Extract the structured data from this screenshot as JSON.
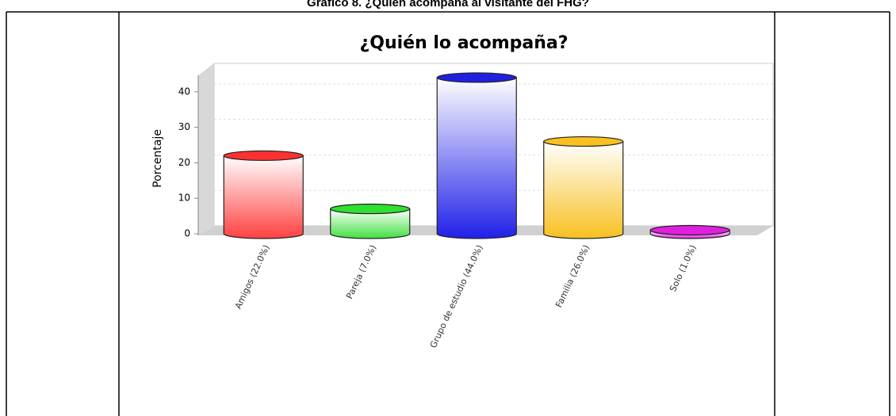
{
  "caption": "Gráfico 8. ¿Quién acompaña al visitante del FHG?",
  "chart_data": {
    "type": "bar",
    "title": "¿Quién lo acompaña?",
    "y_label": "Porcentaje",
    "categories": [
      "Amigos (22.0%)",
      "Pareja (7.0%)",
      "Grupo de estudio (44.0%)",
      "Familia (26.0%)",
      "Solo (1.0%)"
    ],
    "values": [
      22,
      7,
      44,
      26,
      1
    ],
    "colors": [
      "#ff3030",
      "#30e030",
      "#2020e0",
      "#f8c020",
      "#e020e0"
    ],
    "ylim": [
      0,
      48
    ],
    "yticks": [
      0,
      10,
      20,
      30,
      40
    ],
    "grid": true
  }
}
